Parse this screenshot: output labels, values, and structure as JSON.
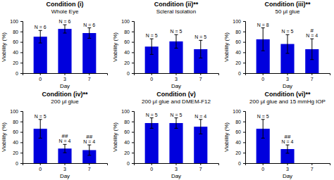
{
  "chart_data": [
    {
      "type": "bar",
      "title": "Condition (i)",
      "subtitle": "Whole Eye",
      "x_label": "Day",
      "y_label": "Viability (%)",
      "categories": [
        "0",
        "3",
        "7"
      ],
      "values": [
        70,
        85,
        77
      ],
      "errors": [
        12,
        8,
        10
      ],
      "n_labels": [
        "N = 6",
        "N = 6",
        "N = 6"
      ],
      "sig_labels": [
        null,
        null,
        null
      ],
      "color": "#0000DD",
      "ylim": [
        0,
        100
      ],
      "yticks": [
        0,
        20,
        40,
        60,
        80,
        100
      ]
    },
    {
      "type": "bar",
      "title": "Condition (ii)**",
      "subtitle": "Scleral Isolation",
      "x_label": "Day",
      "y_label": "Viability (%)",
      "categories": [
        "0",
        "3",
        "7"
      ],
      "values": [
        51,
        61,
        46
      ],
      "errors": [
        15,
        13,
        17
      ],
      "n_labels": [
        "N = 5",
        "N = 5",
        "N = 5"
      ],
      "sig_labels": [
        null,
        null,
        null
      ],
      "color": "#0000DD",
      "ylim": [
        0,
        100
      ],
      "yticks": [
        0,
        20,
        40,
        60,
        80,
        100
      ]
    },
    {
      "type": "bar",
      "title": "Condition (iii)**",
      "subtitle": "50 μl glue",
      "x_label": "Day",
      "y_label": "Viability (%)",
      "categories": [
        "0",
        "3",
        "7"
      ],
      "values": [
        65,
        56,
        46
      ],
      "errors": [
        22,
        18,
        20
      ],
      "n_labels": [
        "N = 8",
        "N = 5",
        "N = 4"
      ],
      "sig_labels": [
        null,
        null,
        "#"
      ],
      "color": "#0000DD",
      "ylim": [
        0,
        100
      ],
      "yticks": [
        0,
        20,
        40,
        60,
        80,
        100
      ]
    },
    {
      "type": "bar",
      "title": "Condition (iv)**",
      "subtitle": "200 μl glue",
      "x_label": "Day",
      "y_label": "Viability (%)",
      "categories": [
        "0",
        "3",
        "7"
      ],
      "values": [
        66,
        28,
        25
      ],
      "errors": [
        18,
        8,
        10
      ],
      "n_labels": [
        "N = 5",
        "N = 4",
        "N = 4"
      ],
      "sig_labels": [
        null,
        "##",
        "##"
      ],
      "color": "#0000DD",
      "ylim": [
        0,
        100
      ],
      "yticks": [
        0,
        20,
        40,
        60,
        80,
        100
      ]
    },
    {
      "type": "bar",
      "title": "Condition (v)",
      "subtitle": "200 μl glue and DMEM-F12",
      "x_label": "Day",
      "y_label": "Viability (%)",
      "categories": [
        "0",
        "3",
        "7"
      ],
      "values": [
        77,
        77,
        70
      ],
      "errors": [
        10,
        10,
        14
      ],
      "n_labels": [
        "N = 5",
        "N = 5",
        "N = 4"
      ],
      "sig_labels": [
        null,
        null,
        null
      ],
      "color": "#0000DD",
      "ylim": [
        0,
        100
      ],
      "yticks": [
        0,
        20,
        40,
        60,
        80,
        100
      ]
    },
    {
      "type": "bar",
      "title": "Condition (vi)**",
      "subtitle": "200 μl glue and 15 mmHg IOP",
      "x_label": "Day",
      "y_label": "Viability (%)",
      "categories": [
        "0",
        "3",
        "7"
      ],
      "values": [
        66,
        27,
        null
      ],
      "errors": [
        18,
        8,
        null
      ],
      "n_labels": [
        "N = 5",
        "N = 4",
        null
      ],
      "sig_labels": [
        null,
        "##",
        null
      ],
      "color": "#0000DD",
      "ylim": [
        0,
        100
      ],
      "yticks": [
        0,
        20,
        40,
        60,
        80,
        100
      ]
    }
  ]
}
